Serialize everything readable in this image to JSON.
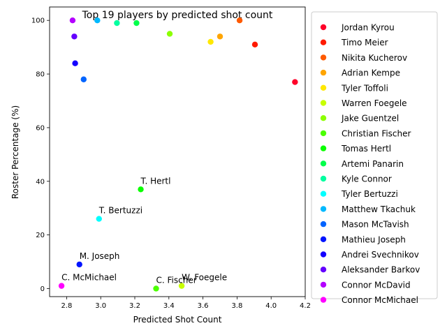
{
  "chart_data": {
    "type": "scatter",
    "title": "Top 19 players by predicted shot count",
    "xlabel": "Predicted Shot Count",
    "ylabel": "Roster Percentage (%)",
    "xlim": [
      2.7,
      4.2
    ],
    "ylim": [
      -3,
      105
    ],
    "xticks": [
      2.8,
      3.0,
      3.2,
      3.4,
      3.6,
      3.8,
      4.0,
      4.2
    ],
    "xtick_labels": [
      "2.8",
      "3.0",
      "3.2",
      "3.4",
      "3.6",
      "3.8",
      "4.0",
      "4.2"
    ],
    "yticks": [
      0,
      20,
      40,
      60,
      80,
      100
    ],
    "ytick_labels": [
      "0",
      "20",
      "40",
      "60",
      "80",
      "100"
    ],
    "grid": false,
    "legend_position": "outside-right",
    "points": [
      {
        "name": "Jordan Kyrou",
        "x": 4.14,
        "y": 77,
        "color": "#ff0029",
        "label": ""
      },
      {
        "name": "Timo Meier",
        "x": 3.905,
        "y": 91,
        "color": "#ff1a00",
        "label": ""
      },
      {
        "name": "Nikita Kucherov",
        "x": 3.815,
        "y": 100,
        "color": "#ff5a00",
        "label": ""
      },
      {
        "name": "Adrian Kempe",
        "x": 3.7,
        "y": 94,
        "color": "#ffa500",
        "label": ""
      },
      {
        "name": "Tyler Toffoli",
        "x": 3.645,
        "y": 92,
        "color": "#ffe800",
        "label": ""
      },
      {
        "name": "Warren Foegele",
        "x": 3.475,
        "y": 1,
        "color": "#c8ff00",
        "label": "W. Foegele"
      },
      {
        "name": "Jake Guentzel",
        "x": 3.405,
        "y": 95,
        "color": "#8cff00",
        "label": ""
      },
      {
        "name": "Christian Fischer",
        "x": 3.325,
        "y": 0,
        "color": "#4bff00",
        "label": "C. Fischer"
      },
      {
        "name": "Tomas Hertl",
        "x": 3.235,
        "y": 37,
        "color": "#0aff00",
        "label": "T. Hertl"
      },
      {
        "name": "Artemi Panarin",
        "x": 3.21,
        "y": 99,
        "color": "#00ff4b",
        "label": ""
      },
      {
        "name": "Kyle Connor",
        "x": 3.095,
        "y": 99,
        "color": "#00ffa0",
        "label": ""
      },
      {
        "name": "Tyler Bertuzzi",
        "x": 2.99,
        "y": 26,
        "color": "#00ffff",
        "label": "T. Bertuzzi"
      },
      {
        "name": "Matthew Tkachuk",
        "x": 2.98,
        "y": 100,
        "color": "#00b9ff",
        "label": ""
      },
      {
        "name": "Mason McTavish",
        "x": 2.9,
        "y": 78,
        "color": "#0064ff",
        "label": ""
      },
      {
        "name": "Mathieu Joseph",
        "x": 2.875,
        "y": 9,
        "color": "#0014ff",
        "label": "M. Joseph"
      },
      {
        "name": "Andrei Svechnikov",
        "x": 2.85,
        "y": 84,
        "color": "#1400ff",
        "label": ""
      },
      {
        "name": "Aleksander Barkov",
        "x": 2.845,
        "y": 94,
        "color": "#6400ff",
        "label": ""
      },
      {
        "name": "Connor McDavid",
        "x": 2.835,
        "y": 100,
        "color": "#b400ff",
        "label": ""
      },
      {
        "name": "Connor McMichael",
        "x": 2.77,
        "y": 1,
        "color": "#ff00ff",
        "label": "C. McMichael"
      }
    ]
  }
}
